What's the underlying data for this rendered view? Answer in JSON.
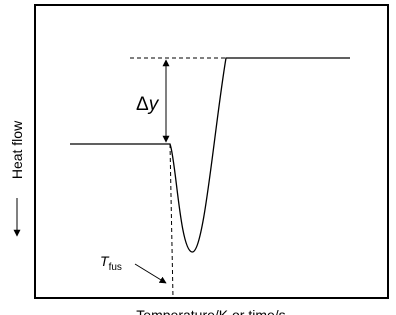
{
  "labels": {
    "delta": {
      "symbol": "Δ",
      "variable": "y"
    },
    "y_axis": "Heat flow",
    "x_axis": "Temperature/K or time/s",
    "fusion_temperature": {
      "symbol": "T",
      "subscript": "fus"
    }
  }
}
